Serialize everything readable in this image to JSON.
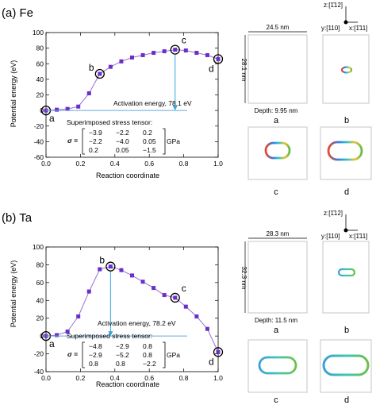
{
  "chart_data": [
    {
      "type": "line",
      "panel_label": "(a) Fe",
      "xlabel": "Reaction coordinate",
      "ylabel": "Potential energy (eV)",
      "xlim": [
        0,
        1.0
      ],
      "ylim": [
        -60,
        100
      ],
      "xticks": [
        "0.0",
        "0.2",
        "0.4",
        "0.6",
        "0.8",
        "1.0"
      ],
      "yticks": [
        "-60",
        "-40",
        "-20",
        "0",
        "20",
        "40",
        "60",
        "80",
        "100"
      ],
      "x": [
        0,
        0.0625,
        0.125,
        0.1875,
        0.25,
        0.3125,
        0.375,
        0.4375,
        0.5,
        0.5625,
        0.625,
        0.6875,
        0.75,
        0.8125,
        0.875,
        0.9375,
        1.0
      ],
      "y": [
        0,
        1,
        2,
        5,
        22,
        47,
        56,
        63,
        68,
        71,
        74,
        76,
        78,
        77,
        74,
        71,
        66
      ],
      "labeled_points": [
        {
          "label": "a",
          "x": 0,
          "y": 0
        },
        {
          "label": "b",
          "x": 0.3125,
          "y": 47
        },
        {
          "label": "c",
          "x": 0.75,
          "y": 78
        },
        {
          "label": "d",
          "x": 1.0,
          "y": 66
        }
      ],
      "annotation": "Activation energy, 78.1 eV",
      "stress_title": "Superimposed stress tensor:",
      "stress_symbol": "σ =",
      "stress_matrix": [
        [
          "−3.9",
          "−2.2",
          "0.2"
        ],
        [
          "−2.2",
          "−4.0",
          "0.05"
        ],
        [
          "0.2",
          "0.05",
          "−1.5"
        ]
      ],
      "stress_unit": "GPa",
      "series_color": "#9b6fd3",
      "marker_color": "#6a2fc9"
    },
    {
      "type": "line",
      "panel_label": "(b) Ta",
      "xlabel": "Reaction coordinate",
      "ylabel": "Potential energy (eV)",
      "xlim": [
        0,
        1.0
      ],
      "ylim": [
        -40,
        100
      ],
      "xticks": [
        "0.0",
        "0.2",
        "0.4",
        "0.6",
        "0.8",
        "1.0"
      ],
      "yticks": [
        "-40",
        "-20",
        "0",
        "20",
        "40",
        "60",
        "80",
        "100"
      ],
      "x": [
        0,
        0.0625,
        0.125,
        0.1875,
        0.25,
        0.3125,
        0.375,
        0.4375,
        0.5,
        0.5625,
        0.625,
        0.6875,
        0.75,
        0.8125,
        0.875,
        0.9375,
        1.0
      ],
      "y": [
        0,
        1,
        5,
        22,
        50,
        75,
        78,
        74,
        68,
        61,
        54,
        46,
        43,
        33,
        22,
        8,
        -18
      ],
      "labeled_points": [
        {
          "label": "a",
          "x": 0,
          "y": 0
        },
        {
          "label": "b",
          "x": 0.375,
          "y": 78
        },
        {
          "label": "c",
          "x": 0.75,
          "y": 43
        },
        {
          "label": "d",
          "x": 1.0,
          "y": -18
        }
      ],
      "annotation": "Activation energy, 78.2 eV",
      "stress_title": "Superimposed stress tensor:",
      "stress_symbol": "σ =",
      "stress_matrix": [
        [
          "−4.8",
          "−2.9",
          "0.8"
        ],
        [
          "−2.9",
          "−5.2",
          "0.8"
        ],
        [
          "0.8",
          "0.8",
          "−2.2"
        ]
      ],
      "stress_unit": "GPa",
      "series_color": "#9b6fd3",
      "marker_color": "#6a2fc9"
    }
  ],
  "snapshots": [
    {
      "width_label": "24.5 nm",
      "height_label": "28.1 nm",
      "depth_label": "Depth: 9.95 nm",
      "captions": [
        "a",
        "b",
        "c",
        "d"
      ],
      "axes": {
        "z": "z:[1̄12]",
        "y": "y:[110]",
        "x": "x:[1̄11]"
      }
    },
    {
      "width_label": "28.3 nm",
      "height_label": "32.3 nm",
      "depth_label": "Depth: 11.5 nm",
      "captions": [
        "a",
        "b",
        "c",
        "d"
      ],
      "axes": {
        "z": "z:[1̄12]",
        "y": "y:[110]",
        "x": "x:[1̄11]"
      }
    }
  ]
}
